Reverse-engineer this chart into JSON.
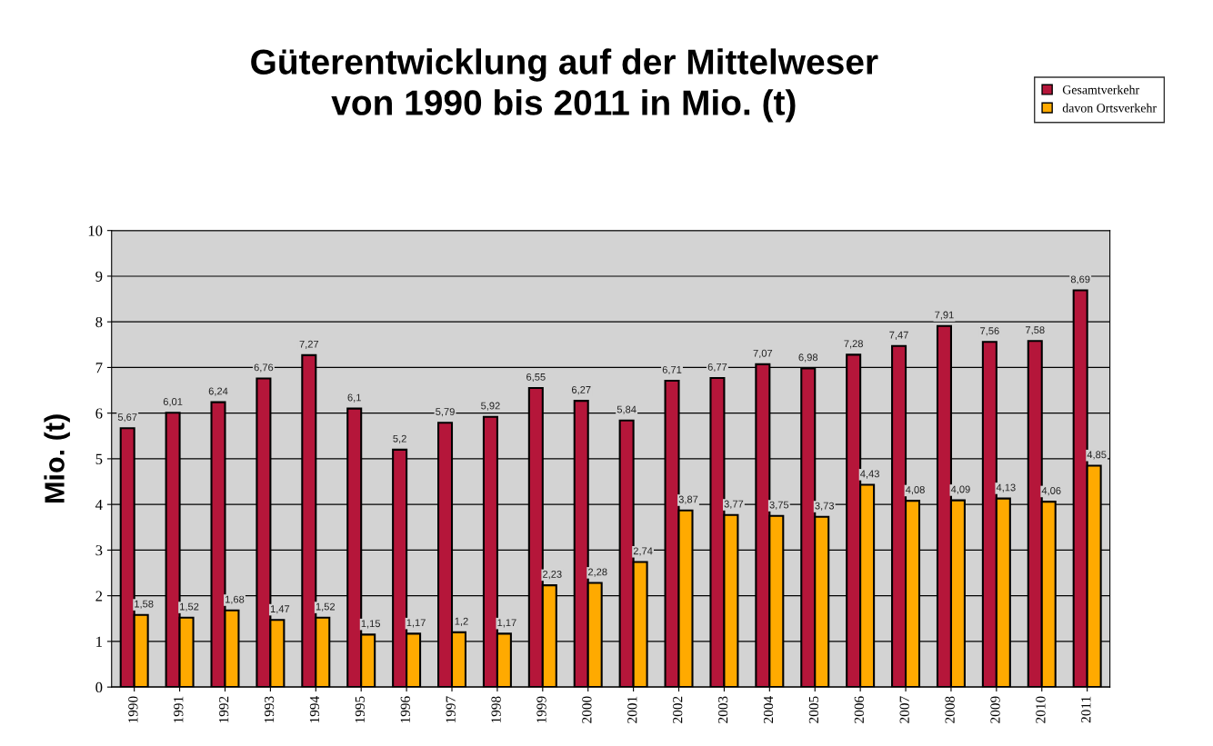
{
  "chart_data": {
    "type": "bar",
    "title": "Güterentwicklung auf der Mittelweser\nvon 1990 bis 2011 in Mio. (t)",
    "ylabel": "Mio. (t)",
    "categories": [
      "1990",
      "1991",
      "1992",
      "1993",
      "1994",
      "1995",
      "1996",
      "1997",
      "1998",
      "1999",
      "2000",
      "2001",
      "2002",
      "2003",
      "2004",
      "2005",
      "2006",
      "2007",
      "2008",
      "2009",
      "2010",
      "2011"
    ],
    "series": [
      {
        "name": "Gesamtverkehr",
        "color": "#b5163a",
        "values": [
          5.67,
          6.01,
          6.24,
          6.76,
          7.27,
          6.1,
          5.2,
          5.79,
          5.92,
          6.55,
          6.27,
          5.84,
          6.71,
          6.77,
          7.07,
          6.98,
          7.28,
          7.47,
          7.91,
          7.56,
          7.58,
          8.69
        ],
        "value_labels": [
          "5,67",
          "6,01",
          "6,24",
          "6,76",
          "7,27",
          "6,1",
          "5,2",
          "5,79",
          "5,92",
          "6,55",
          "6,27",
          "5,84",
          "6,71",
          "6,77",
          "7,07",
          "6,98",
          "7,28",
          "7,47",
          "7,91",
          "7,56",
          "7,58",
          "8,69"
        ]
      },
      {
        "name": "davon Ortsverkehr",
        "color": "#ffaa00",
        "values": [
          1.58,
          1.52,
          1.68,
          1.47,
          1.52,
          1.15,
          1.17,
          1.2,
          1.17,
          2.23,
          2.28,
          2.74,
          3.87,
          3.77,
          3.75,
          3.73,
          4.43,
          4.08,
          4.09,
          4.13,
          4.06,
          4.85
        ],
        "value_labels": [
          "1,58",
          "1,52",
          "1,68",
          "1,47",
          "1,52",
          "1,15",
          "1,17",
          "1,2",
          "1,17",
          "2,23",
          "2,28",
          "2,74",
          "3,87",
          "3,77",
          "3,75",
          "3,73",
          "4,43",
          "4,08",
          "4,09",
          "4,13",
          "4,06",
          "4,85"
        ]
      }
    ],
    "ylim": [
      0,
      10
    ],
    "yticks": [
      0,
      1,
      2,
      3,
      4,
      5,
      6,
      7,
      8,
      9,
      10
    ],
    "grid": "y",
    "legend": "top right"
  }
}
